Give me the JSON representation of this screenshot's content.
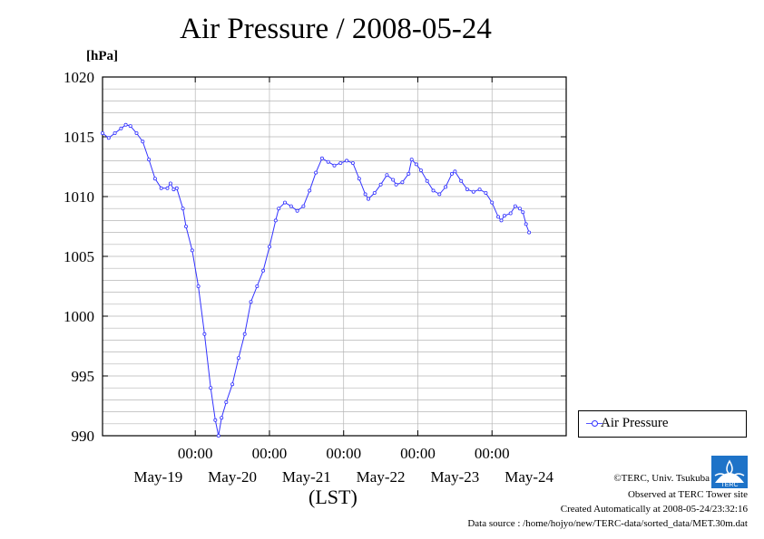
{
  "title": "Air Pressure / 2008-05-24",
  "unit_label": "[hPa]",
  "xlabel": "(LST)",
  "legend": {
    "label": "Air Pressure"
  },
  "credits": {
    "copyright": "©TERC, Univ. Tsukuba",
    "observed": "Observed at TERC Tower site",
    "created": "Created Automatically at 2008-05-24/23:32:16",
    "source": "Data source : /home/hojyo/new/TERC-data/sorted_data/MET.30m.dat",
    "logo_text": "TERC"
  },
  "colors": {
    "series": "#3333ff",
    "grid": "#b5b5b5"
  },
  "chart_data": {
    "type": "line",
    "title": "Air Pressure / 2008-05-24",
    "ylabel": "[hPa]",
    "xlabel": "(LST)",
    "ylim": [
      990,
      1020
    ],
    "yticks": [
      990,
      995,
      1000,
      1005,
      1010,
      1015,
      1020
    ],
    "xlim": [
      "2008-05-18T18:00",
      "2008-05-25T00:00"
    ],
    "xticks": [
      {
        "time": "2008-05-20T00:00",
        "label": "00:00"
      },
      {
        "time": "2008-05-21T00:00",
        "label": "00:00"
      },
      {
        "time": "2008-05-22T00:00",
        "label": "00:00"
      },
      {
        "time": "2008-05-23T00:00",
        "label": "00:00"
      },
      {
        "time": "2008-05-24T00:00",
        "label": "00:00"
      }
    ],
    "day_labels": [
      {
        "time": "2008-05-19T12:00",
        "label": "May-19"
      },
      {
        "time": "2008-05-20T12:00",
        "label": "May-20"
      },
      {
        "time": "2008-05-21T12:00",
        "label": "May-21"
      },
      {
        "time": "2008-05-22T12:00",
        "label": "May-22"
      },
      {
        "time": "2008-05-23T12:00",
        "label": "May-23"
      },
      {
        "time": "2008-05-24T12:00",
        "label": "May-24"
      }
    ],
    "grid": true,
    "legend_position": "right",
    "series": [
      {
        "name": "Air Pressure",
        "points": [
          [
            "2008-05-18T18:00",
            1015.3
          ],
          [
            "2008-05-18T20:00",
            1014.9
          ],
          [
            "2008-05-18T22:00",
            1015.3
          ],
          [
            "2008-05-19T00:00",
            1015.7
          ],
          [
            "2008-05-19T01:30",
            1016.0
          ],
          [
            "2008-05-19T03:00",
            1015.9
          ],
          [
            "2008-05-19T05:00",
            1015.3
          ],
          [
            "2008-05-19T07:00",
            1014.6
          ],
          [
            "2008-05-19T09:00",
            1013.1
          ],
          [
            "2008-05-19T11:00",
            1011.5
          ],
          [
            "2008-05-19T13:00",
            1010.7
          ],
          [
            "2008-05-19T15:00",
            1010.7
          ],
          [
            "2008-05-19T16:00",
            1011.1
          ],
          [
            "2008-05-19T17:00",
            1010.6
          ],
          [
            "2008-05-19T18:00",
            1010.7
          ],
          [
            "2008-05-19T20:00",
            1009.0
          ],
          [
            "2008-05-19T21:00",
            1007.5
          ],
          [
            "2008-05-19T23:00",
            1005.5
          ],
          [
            "2008-05-20T01:00",
            1002.5
          ],
          [
            "2008-05-20T03:00",
            998.5
          ],
          [
            "2008-05-20T05:00",
            994.0
          ],
          [
            "2008-05-20T06:30",
            991.3
          ],
          [
            "2008-05-20T07:30",
            990.0
          ],
          [
            "2008-05-20T08:30",
            991.5
          ],
          [
            "2008-05-20T10:00",
            992.8
          ],
          [
            "2008-05-20T12:00",
            994.3
          ],
          [
            "2008-05-20T14:00",
            996.5
          ],
          [
            "2008-05-20T16:00",
            998.5
          ],
          [
            "2008-05-20T18:00",
            1001.2
          ],
          [
            "2008-05-20T20:00",
            1002.5
          ],
          [
            "2008-05-20T22:00",
            1003.8
          ],
          [
            "2008-05-21T00:00",
            1005.8
          ],
          [
            "2008-05-21T02:00",
            1008.0
          ],
          [
            "2008-05-21T03:00",
            1009.0
          ],
          [
            "2008-05-21T05:00",
            1009.5
          ],
          [
            "2008-05-21T07:00",
            1009.2
          ],
          [
            "2008-05-21T09:00",
            1008.8
          ],
          [
            "2008-05-21T11:00",
            1009.2
          ],
          [
            "2008-05-21T13:00",
            1010.5
          ],
          [
            "2008-05-21T15:00",
            1012.0
          ],
          [
            "2008-05-21T17:00",
            1013.2
          ],
          [
            "2008-05-21T19:00",
            1012.9
          ],
          [
            "2008-05-21T21:00",
            1012.6
          ],
          [
            "2008-05-21T23:00",
            1012.8
          ],
          [
            "2008-05-22T01:00",
            1013.0
          ],
          [
            "2008-05-22T03:00",
            1012.8
          ],
          [
            "2008-05-22T05:00",
            1011.5
          ],
          [
            "2008-05-22T07:00",
            1010.2
          ],
          [
            "2008-05-22T08:00",
            1009.8
          ],
          [
            "2008-05-22T10:00",
            1010.3
          ],
          [
            "2008-05-22T12:00",
            1011.0
          ],
          [
            "2008-05-22T14:00",
            1011.8
          ],
          [
            "2008-05-22T16:00",
            1011.4
          ],
          [
            "2008-05-22T17:00",
            1011.0
          ],
          [
            "2008-05-22T19:00",
            1011.2
          ],
          [
            "2008-05-22T21:00",
            1011.9
          ],
          [
            "2008-05-22T22:00",
            1013.1
          ],
          [
            "2008-05-22T23:30",
            1012.7
          ],
          [
            "2008-05-23T01:00",
            1012.2
          ],
          [
            "2008-05-23T03:00",
            1011.3
          ],
          [
            "2008-05-23T05:00",
            1010.5
          ],
          [
            "2008-05-23T07:00",
            1010.2
          ],
          [
            "2008-05-23T09:00",
            1010.8
          ],
          [
            "2008-05-23T11:00",
            1011.9
          ],
          [
            "2008-05-23T12:00",
            1012.1
          ],
          [
            "2008-05-23T14:00",
            1011.3
          ],
          [
            "2008-05-23T16:00",
            1010.6
          ],
          [
            "2008-05-23T18:00",
            1010.4
          ],
          [
            "2008-05-23T20:00",
            1010.6
          ],
          [
            "2008-05-23T22:00",
            1010.3
          ],
          [
            "2008-05-24T00:00",
            1009.5
          ],
          [
            "2008-05-24T02:00",
            1008.3
          ],
          [
            "2008-05-24T03:00",
            1008.0
          ],
          [
            "2008-05-24T04:00",
            1008.4
          ],
          [
            "2008-05-24T06:00",
            1008.6
          ],
          [
            "2008-05-24T07:30",
            1009.2
          ],
          [
            "2008-05-24T09:00",
            1009.0
          ],
          [
            "2008-05-24T10:00",
            1008.7
          ],
          [
            "2008-05-24T11:00",
            1007.7
          ],
          [
            "2008-05-24T12:00",
            1007.0
          ]
        ]
      }
    ]
  }
}
